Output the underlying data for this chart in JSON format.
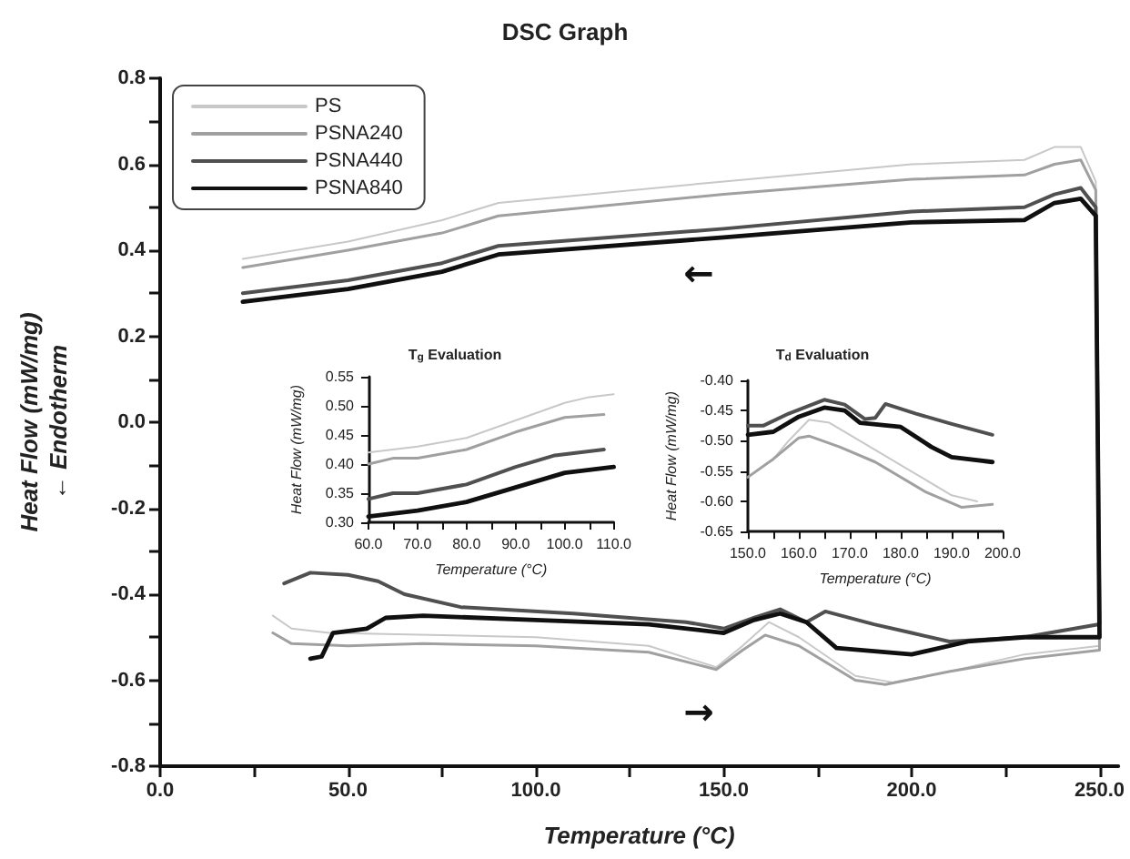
{
  "chart_data": [
    {
      "type": "line",
      "title": "DSC Graph",
      "xlabel": "Temperature (°C)",
      "ylabel": "Heat Flow (mW/mg)\n← Endotherm",
      "legend": "top left",
      "marker": "none",
      "xlim": [
        0,
        255
      ],
      "ylim": [
        -0.8,
        0.8
      ],
      "xticks": [
        {
          "value": 0,
          "label": "0.0"
        },
        {
          "value": 25,
          "label": null
        },
        {
          "value": 50,
          "label": "50.0"
        },
        {
          "value": 75,
          "label": null
        },
        {
          "value": 100,
          "label": "100.0"
        },
        {
          "value": 125,
          "label": null
        },
        {
          "value": 150,
          "label": "150.0"
        },
        {
          "value": 175,
          "label": null
        },
        {
          "value": 200,
          "label": "200.0"
        },
        {
          "value": 225,
          "label": null
        },
        {
          "value": 250,
          "label": "250.0"
        }
      ],
      "yticks": [
        -0.8,
        {
          "value": -0.7,
          "label": null
        },
        -0.6,
        {
          "value": -0.5,
          "label": null
        },
        -0.4,
        {
          "value": -0.3,
          "label": null
        },
        -0.2,
        {
          "value": -0.1,
          "label": null
        },
        {
          "value": 0,
          "label": "0.0"
        },
        {
          "value": 0.1,
          "label": null
        },
        0.2,
        {
          "value": 0.3,
          "label": null
        },
        0.4,
        {
          "value": 0.5,
          "label": null
        },
        0.6,
        {
          "value": 0.7,
          "label": null
        },
        0.8
      ],
      "annotations": [
        "←",
        "→"
      ],
      "series": [
        {
          "name": "PS",
          "color": "#c8c8c8",
          "x": [
            30,
            35,
            45,
            100,
            130,
            148,
            155,
            162,
            170,
            185,
            195,
            210,
            230,
            250,
            249,
            245,
            238,
            230,
            200,
            150,
            90,
            75,
            50,
            22
          ],
          "values": [
            -0.45,
            -0.48,
            -0.49,
            -0.5,
            -0.52,
            -0.57,
            -0.52,
            -0.465,
            -0.5,
            -0.59,
            -0.605,
            -0.58,
            -0.54,
            -0.52,
            0.56,
            0.64,
            0.64,
            0.61,
            0.6,
            0.56,
            0.51,
            0.47,
            0.42,
            0.38
          ]
        },
        {
          "name": "PSNA240",
          "color": "#a0a0a0",
          "x": [
            30,
            35,
            50,
            70,
            100,
            130,
            148,
            155,
            161,
            170,
            185,
            193,
            210,
            230,
            250,
            249,
            245,
            238,
            230,
            200,
            150,
            90,
            75,
            50,
            22
          ],
          "values": [
            -0.49,
            -0.515,
            -0.52,
            -0.515,
            -0.52,
            -0.535,
            -0.575,
            -0.53,
            -0.495,
            -0.52,
            -0.6,
            -0.61,
            -0.58,
            -0.55,
            -0.53,
            0.54,
            0.61,
            0.6,
            0.575,
            0.565,
            0.53,
            0.48,
            0.44,
            0.4,
            0.36
          ]
        },
        {
          "name": "PSNA440",
          "color": "#505050",
          "x": [
            33,
            40,
            50,
            58,
            65,
            80,
            90,
            110,
            140,
            150,
            158,
            165,
            172,
            177,
            190,
            200,
            210,
            230,
            250,
            249,
            245,
            238,
            230,
            200,
            150,
            90,
            75,
            50,
            22
          ],
          "values": [
            -0.375,
            -0.35,
            -0.355,
            -0.37,
            -0.4,
            -0.43,
            -0.435,
            -0.445,
            -0.465,
            -0.48,
            -0.455,
            -0.435,
            -0.465,
            -0.44,
            -0.47,
            -0.49,
            -0.51,
            -0.5,
            -0.47,
            0.5,
            0.545,
            0.53,
            0.5,
            0.49,
            0.45,
            0.41,
            0.37,
            0.33,
            0.3
          ]
        },
        {
          "name": "PSNA840",
          "color": "#101010",
          "x": [
            40,
            43,
            46,
            55,
            60,
            70,
            100,
            130,
            150,
            158,
            165,
            172,
            180,
            200,
            215,
            230,
            250,
            249,
            245,
            238,
            230,
            200,
            150,
            90,
            75,
            50,
            22
          ],
          "values": [
            -0.55,
            -0.545,
            -0.49,
            -0.48,
            -0.455,
            -0.45,
            -0.46,
            -0.47,
            -0.49,
            -0.46,
            -0.445,
            -0.465,
            -0.525,
            -0.54,
            -0.51,
            -0.5,
            -0.5,
            0.48,
            0.52,
            0.51,
            0.47,
            0.465,
            0.43,
            0.39,
            0.35,
            0.31,
            0.28
          ]
        }
      ]
    },
    {
      "type": "line",
      "title": "T$_{g}$ Evaluation",
      "xlabel": "Temperature (°C)",
      "ylabel": "Heat Flow (mW/mg)",
      "marker": "none",
      "xlim": [
        60,
        110
      ],
      "ylim": [
        0.3,
        0.55
      ],
      "xticks": [
        {
          "value": 60,
          "label": "60.0"
        },
        {
          "value": 65,
          "label": null
        },
        {
          "value": 70,
          "label": "70.0"
        },
        {
          "value": 75,
          "label": null
        },
        {
          "value": 80,
          "label": "80.0"
        },
        {
          "value": 85,
          "label": null
        },
        {
          "value": 90,
          "label": "90.0"
        },
        {
          "value": 95,
          "label": null
        },
        {
          "value": 100,
          "label": "100.0"
        },
        {
          "value": 105,
          "label": null
        },
        {
          "value": 110,
          "label": "110.0"
        }
      ],
      "yticks": [
        {
          "value": 0.3,
          "label": "0.30"
        },
        0.35,
        {
          "value": 0.4,
          "label": "0.40"
        },
        0.45,
        {
          "value": 0.5,
          "label": "0.50"
        },
        0.55
      ],
      "series": [
        {
          "color": "#c8c8c8",
          "x": [
            60,
            70,
            80,
            90,
            100,
            105,
            110
          ],
          "values": [
            0.42,
            0.43,
            0.445,
            0.475,
            0.505,
            0.515,
            0.52
          ]
        },
        {
          "color": "#a0a0a0",
          "x": [
            60,
            65,
            70,
            80,
            90,
            100,
            108
          ],
          "values": [
            0.4,
            0.41,
            0.41,
            0.425,
            0.455,
            0.48,
            0.485
          ]
        },
        {
          "color": "#505050",
          "x": [
            60,
            65,
            70,
            80,
            90,
            98,
            108
          ],
          "values": [
            0.34,
            0.35,
            0.35,
            0.365,
            0.395,
            0.415,
            0.425
          ]
        },
        {
          "color": "#101010",
          "x": [
            60,
            70,
            80,
            90,
            100,
            110
          ],
          "values": [
            0.31,
            0.32,
            0.335,
            0.36,
            0.385,
            0.395
          ]
        }
      ]
    },
    {
      "type": "line",
      "title": "T$_{d}$ Evaluation",
      "xlabel": "Temperature (°C)",
      "ylabel": "Heat Flow (mW/mg)",
      "marker": "none",
      "xlim": [
        150,
        200
      ],
      "ylim": [
        -0.65,
        -0.4
      ],
      "xticks": [
        {
          "value": 150,
          "label": "150.0"
        },
        {
          "value": 155,
          "label": null
        },
        {
          "value": 160,
          "label": "160.0"
        },
        {
          "value": 165,
          "label": null
        },
        {
          "value": 170,
          "label": "170.0"
        },
        {
          "value": 175,
          "label": null
        },
        {
          "value": 180,
          "label": "180.0"
        },
        {
          "value": 185,
          "label": null
        },
        {
          "value": 190,
          "label": "190.0"
        },
        {
          "value": 195,
          "label": null
        },
        {
          "value": 200,
          "label": "200.0"
        }
      ],
      "yticks": [
        -0.65,
        {
          "value": -0.6,
          "label": "-0.60"
        },
        -0.55,
        {
          "value": -0.5,
          "label": "-0.50"
        },
        -0.45,
        {
          "value": -0.4,
          "label": "-0.40"
        }
      ],
      "series": [
        {
          "color": "#c8c8c8",
          "x": [
            155,
            158,
            162,
            166,
            170,
            180,
            190,
            195
          ],
          "values": [
            -0.53,
            -0.5,
            -0.465,
            -0.47,
            -0.49,
            -0.54,
            -0.59,
            -0.6
          ]
        },
        {
          "color": "#a0a0a0",
          "x": [
            150,
            155,
            160,
            162,
            168,
            175,
            185,
            192,
            198
          ],
          "values": [
            -0.56,
            -0.53,
            -0.495,
            -0.492,
            -0.51,
            -0.535,
            -0.585,
            -0.61,
            -0.605
          ]
        },
        {
          "color": "#505050",
          "x": [
            150,
            153,
            158,
            165,
            169,
            173,
            175,
            177,
            183,
            190,
            198
          ],
          "values": [
            -0.475,
            -0.475,
            -0.455,
            -0.432,
            -0.44,
            -0.464,
            -0.462,
            -0.439,
            -0.455,
            -0.472,
            -0.49
          ]
        },
        {
          "color": "#101010",
          "x": [
            150,
            155,
            160,
            165,
            169,
            172,
            180,
            186,
            190,
            198
          ],
          "values": [
            -0.49,
            -0.485,
            -0.46,
            -0.445,
            -0.45,
            -0.47,
            -0.477,
            -0.51,
            -0.527,
            -0.535
          ]
        }
      ]
    }
  ]
}
